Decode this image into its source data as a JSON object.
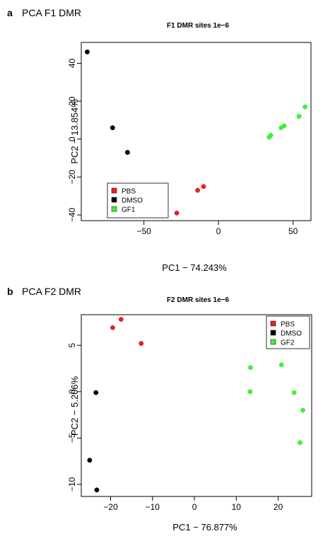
{
  "panels": [
    {
      "letter": "a",
      "heading": "PCA F1 DMR"
    },
    {
      "letter": "b",
      "heading": "PCA F2 DMR"
    }
  ],
  "chart_data": [
    {
      "type": "scatter",
      "title": "F1 DMR sites 1e−6",
      "xlabel": "PC1 − 74.243%",
      "ylabel": "PC2 − 13.854%",
      "xlim": [
        -92,
        62
      ],
      "ylim": [
        -43,
        51
      ],
      "xticks": [
        -50,
        0,
        50
      ],
      "xtick_labels": [
        "−50",
        "0",
        "50"
      ],
      "yticks": [
        -40,
        -20,
        0,
        20,
        40
      ],
      "ytick_labels": [
        "−40",
        "−20",
        "0",
        "20",
        "40"
      ],
      "grid": false,
      "legend_position": "bottom-left",
      "series": [
        {
          "name": "PBS",
          "color": "#e8202a",
          "points": [
            [
              -28,
              -39
            ],
            [
              -14,
              -27
            ],
            [
              -10,
              -25
            ]
          ]
        },
        {
          "name": "DMSO",
          "color": "#000000",
          "points": [
            [
              -88,
              46
            ],
            [
              -71,
              6
            ],
            [
              -61,
              -7
            ]
          ]
        },
        {
          "name": "GF1",
          "color": "#3df23d",
          "points": [
            [
              34,
              1
            ],
            [
              35,
              2
            ],
            [
              42,
              6
            ],
            [
              44,
              7
            ],
            [
              54,
              12
            ],
            [
              58,
              17
            ]
          ]
        }
      ]
    },
    {
      "type": "scatter",
      "title": "F2 DMR sites 1e−6",
      "xlabel": "PC1 − 76.877%",
      "ylabel": "PC2 − 5.206%",
      "xlim": [
        -27,
        28
      ],
      "ylim": [
        -11.3,
        8.3
      ],
      "xticks": [
        -20,
        -10,
        0,
        10,
        20
      ],
      "xtick_labels": [
        "−20",
        "−10",
        "0",
        "10",
        "20"
      ],
      "yticks": [
        -10,
        -5,
        0,
        5
      ],
      "ytick_labels": [
        "−10",
        "−5",
        "0",
        "5"
      ],
      "grid": false,
      "legend_position": "top-right",
      "series": [
        {
          "name": "PBS",
          "color": "#e8202a",
          "points": [
            [
              -19.5,
              6.9
            ],
            [
              -17.5,
              7.8
            ],
            [
              -12.7,
              5.2
            ]
          ]
        },
        {
          "name": "DMSO",
          "color": "#000000",
          "points": [
            [
              -23.5,
              -0.1
            ],
            [
              -25,
              -7.4
            ],
            [
              -23.3,
              -10.6
            ]
          ]
        },
        {
          "name": "GF2",
          "color": "#3df23d",
          "points": [
            [
              13.4,
              2.6
            ],
            [
              13.3,
              0.0
            ],
            [
              20.8,
              2.9
            ],
            [
              23.8,
              -0.1
            ],
            [
              25.9,
              -2.0
            ],
            [
              25.2,
              -5.5
            ]
          ]
        }
      ]
    }
  ]
}
